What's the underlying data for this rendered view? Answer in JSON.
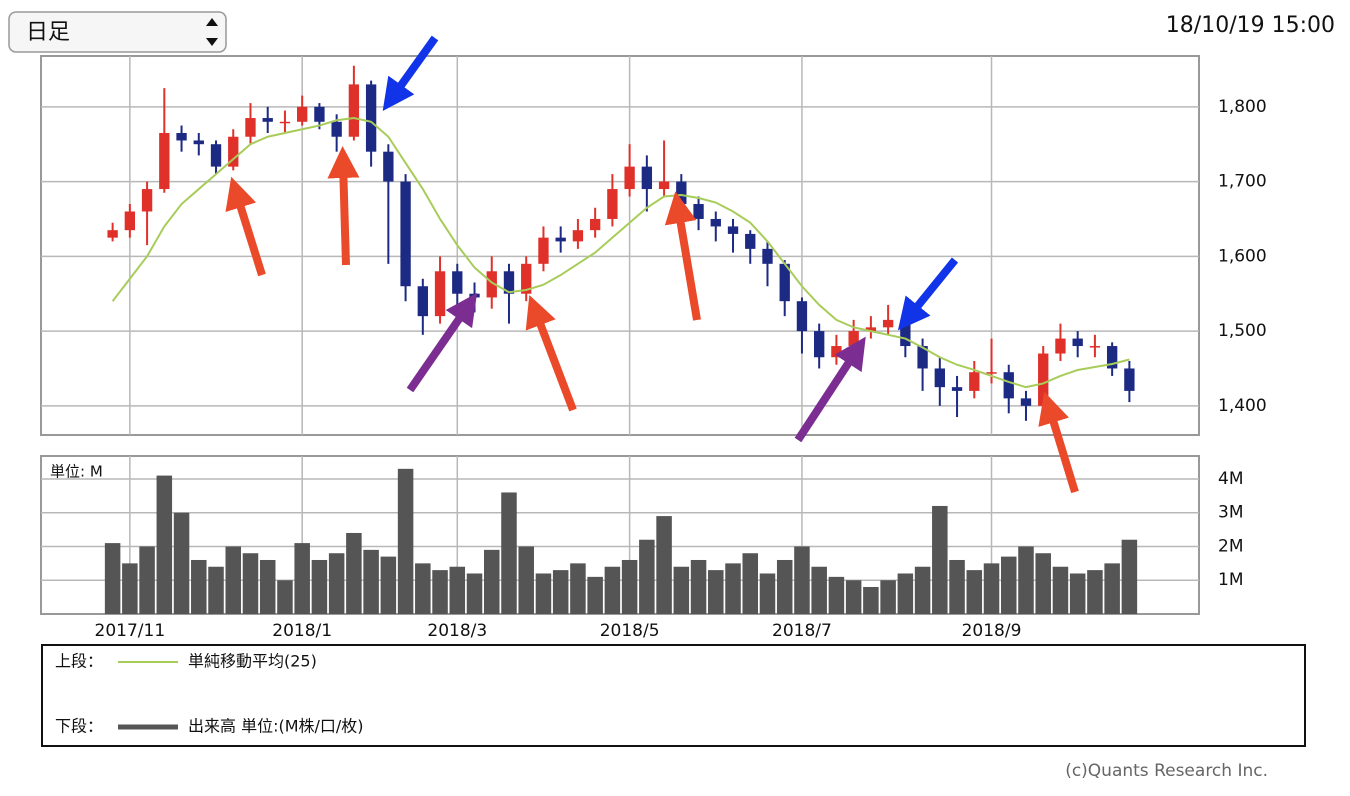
{
  "header": {
    "selector": "日足",
    "timestamp": "18/10/19 15:00"
  },
  "chart_data": [
    {
      "type": "candlestick",
      "categories": [
        null,
        "2017/11",
        null,
        null,
        null,
        null,
        null,
        null,
        null,
        null,
        null,
        "2018/1",
        null,
        null,
        null,
        null,
        null,
        null,
        null,
        null,
        "2018/3",
        null,
        null,
        null,
        null,
        null,
        null,
        null,
        null,
        null,
        "2018/5",
        null,
        null,
        null,
        null,
        null,
        null,
        null,
        null,
        null,
        "2018/7",
        null,
        null,
        null,
        null,
        null,
        null,
        null,
        null,
        null,
        null,
        "2018/9",
        null,
        null,
        null,
        null,
        null,
        null,
        null,
        null
      ],
      "open": [
        1625,
        1635,
        1660,
        1690,
        1765,
        1755,
        1750,
        1720,
        1760,
        1785,
        1780,
        1780,
        1800,
        1780,
        1760,
        1830,
        1740,
        1700,
        1560,
        1520,
        1580,
        1550,
        1545,
        1580,
        1550,
        1590,
        1625,
        1620,
        1635,
        1650,
        1690,
        1720,
        1690,
        1700,
        1670,
        1650,
        1640,
        1630,
        1610,
        1590,
        1540,
        1500,
        1465,
        1480,
        1500,
        1505,
        1515,
        1480,
        1450,
        1425,
        1420,
        1445,
        1445,
        1410,
        1400,
        1470,
        1490,
        1480,
        1480,
        1450
      ],
      "high": [
        1645,
        1670,
        1700,
        1825,
        1775,
        1765,
        1755,
        1770,
        1805,
        1800,
        1795,
        1815,
        1805,
        1790,
        1855,
        1835,
        1750,
        1710,
        1570,
        1600,
        1590,
        1565,
        1600,
        1590,
        1600,
        1640,
        1640,
        1650,
        1665,
        1710,
        1750,
        1735,
        1755,
        1710,
        1680,
        1660,
        1650,
        1635,
        1620,
        1595,
        1545,
        1510,
        1495,
        1515,
        1520,
        1535,
        1525,
        1490,
        1465,
        1440,
        1460,
        1490,
        1455,
        1420,
        1480,
        1510,
        1500,
        1495,
        1485,
        1460
      ],
      "low": [
        1620,
        1625,
        1615,
        1685,
        1740,
        1735,
        1710,
        1715,
        1750,
        1765,
        1765,
        1775,
        1770,
        1740,
        1755,
        1720,
        1590,
        1540,
        1495,
        1510,
        1535,
        1525,
        1530,
        1510,
        1540,
        1580,
        1605,
        1610,
        1625,
        1640,
        1680,
        1660,
        1680,
        1655,
        1635,
        1620,
        1605,
        1590,
        1560,
        1520,
        1470,
        1450,
        1455,
        1470,
        1490,
        1495,
        1465,
        1420,
        1400,
        1385,
        1410,
        1430,
        1390,
        1380,
        1395,
        1460,
        1465,
        1465,
        1440,
        1405
      ],
      "close": [
        1635,
        1660,
        1690,
        1765,
        1755,
        1750,
        1720,
        1760,
        1785,
        1780,
        1780,
        1800,
        1780,
        1760,
        1830,
        1740,
        1700,
        1560,
        1520,
        1580,
        1550,
        1545,
        1580,
        1550,
        1590,
        1625,
        1620,
        1635,
        1650,
        1690,
        1720,
        1690,
        1700,
        1670,
        1650,
        1640,
        1630,
        1610,
        1590,
        1540,
        1500,
        1465,
        1480,
        1500,
        1505,
        1515,
        1480,
        1450,
        1425,
        1420,
        1445,
        1445,
        1410,
        1400,
        1470,
        1490,
        1480,
        1480,
        1450,
        1420
      ],
      "up_color": "#e0302a",
      "down_color": "#1c2a84",
      "ylim": [
        1361,
        1868
      ],
      "yticks": [
        {
          "value": 1400,
          "label": "1,400"
        },
        {
          "value": 1500,
          "label": "1,500"
        },
        {
          "value": 1600,
          "label": "1,600"
        },
        {
          "value": 1700,
          "label": "1,700"
        },
        {
          "value": 1800,
          "label": "1,800"
        }
      ],
      "grid": true,
      "legend_label": "上段：",
      "series": [
        {
          "name": "単純移動平均(25)",
          "color": "#a8cc5a",
          "values": [
            1540,
            1570,
            1600,
            1640,
            1670,
            1690,
            1710,
            1730,
            1750,
            1760,
            1765,
            1770,
            1775,
            1782,
            1785,
            1780,
            1760,
            1725,
            1690,
            1650,
            1615,
            1585,
            1565,
            1552,
            1555,
            1562,
            1575,
            1590,
            1605,
            1625,
            1645,
            1665,
            1680,
            1682,
            1678,
            1672,
            1660,
            1645,
            1620,
            1590,
            1560,
            1535,
            1515,
            1505,
            1500,
            1495,
            1490,
            1478,
            1465,
            1455,
            1448,
            1440,
            1432,
            1425,
            1430,
            1440,
            1448,
            1452,
            1456,
            1462
          ]
        }
      ]
    },
    {
      "type": "bar",
      "unit_label": "単位: M",
      "values": [
        2.1,
        1.5,
        2.0,
        4.1,
        3.0,
        1.6,
        1.4,
        2.0,
        1.8,
        1.6,
        1.0,
        2.1,
        1.6,
        1.8,
        2.4,
        1.9,
        1.7,
        4.3,
        1.5,
        1.3,
        1.4,
        1.2,
        1.9,
        3.6,
        2.0,
        1.2,
        1.3,
        1.5,
        1.1,
        1.4,
        1.6,
        2.2,
        2.9,
        1.4,
        1.6,
        1.3,
        1.5,
        1.8,
        1.2,
        1.6,
        2.0,
        1.4,
        1.1,
        1.0,
        0.8,
        1.0,
        1.2,
        1.4,
        3.2,
        1.6,
        1.3,
        1.5,
        1.7,
        2.0,
        1.8,
        1.4,
        1.2,
        1.3,
        1.5,
        2.2
      ],
      "color": "#555555",
      "ylim": [
        0,
        4.68
      ],
      "yticks": [
        {
          "value": 1,
          "label": "1M"
        },
        {
          "value": 2,
          "label": "2M"
        },
        {
          "value": 3,
          "label": "3M"
        },
        {
          "value": 4,
          "label": "4M"
        }
      ],
      "grid": true,
      "legend_label": "下段：",
      "name": "出来高 単位:(M株/口/枚)"
    }
  ],
  "footer": {
    "copyright": "(c)Quants Research Inc."
  }
}
